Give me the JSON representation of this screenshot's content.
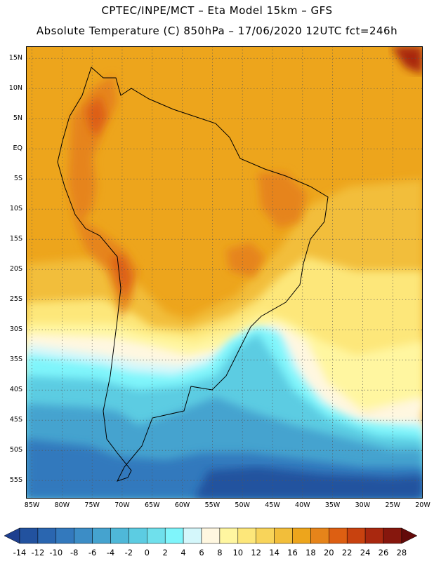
{
  "header": {
    "title_line1": "CPTEC/INPE/MCT –  Eta Model 15km – GFS",
    "title_line2": "Absolute Temperature (C) 850hPa – 17/06/2020 12UTC fct=246h"
  },
  "map": {
    "lat_labels": [
      "15N",
      "10N",
      "5N",
      "EQ",
      "5S",
      "10S",
      "15S",
      "20S",
      "25S",
      "30S",
      "35S",
      "40S",
      "45S",
      "50S",
      "55S"
    ],
    "lat_values": [
      15,
      10,
      5,
      0,
      -5,
      -10,
      -15,
      -20,
      -25,
      -30,
      -35,
      -40,
      -45,
      -50,
      -55
    ],
    "lon_labels": [
      "85W",
      "80W",
      "75W",
      "70W",
      "65W",
      "60W",
      "55W",
      "50W",
      "45W",
      "40W",
      "35W",
      "30W",
      "25W",
      "20W"
    ],
    "lon_values": [
      -85,
      -80,
      -75,
      -70,
      -65,
      -60,
      -55,
      -50,
      -45,
      -40,
      -35,
      -30,
      -25,
      -20
    ],
    "lon_range": [
      -86,
      -20
    ],
    "lat_range": [
      -58,
      17
    ],
    "grid": "dotted"
  },
  "colorbar": {
    "labels": [
      "-14",
      "-12",
      "-10",
      "-8",
      "-6",
      "-4",
      "-2",
      "0",
      "2",
      "4",
      "6",
      "8",
      "10",
      "12",
      "14",
      "16",
      "18",
      "20",
      "22",
      "24",
      "26",
      "28"
    ],
    "colors": [
      "#1e3f8f",
      "#22529f",
      "#2a66b0",
      "#3379bd",
      "#3c8dc6",
      "#45a3cf",
      "#4fb8d8",
      "#5ccce2",
      "#6fe0ec",
      "#7ff5fb",
      "#d4f7fb",
      "#fff7e0",
      "#fff6a0",
      "#fde77a",
      "#f8d45a",
      "#f2be3a",
      "#eda51c",
      "#e6841a",
      "#dd5f12",
      "#c8420f",
      "#a9280f",
      "#86170d",
      "#630a0a"
    ],
    "unit": "C"
  }
}
